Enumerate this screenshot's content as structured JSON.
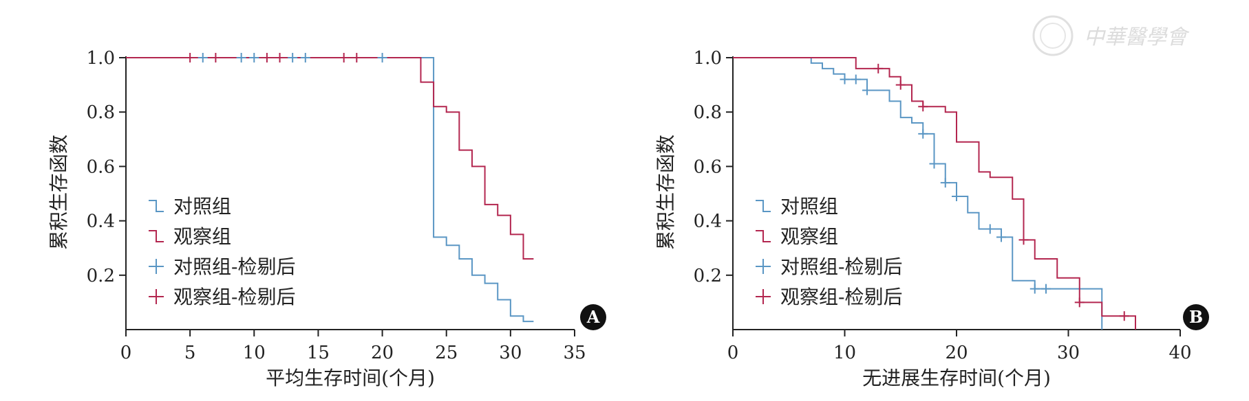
{
  "colors": {
    "control": "#5a96c4",
    "observe": "#b3264f",
    "axis": "#222222"
  },
  "watermark": {
    "text": "中華醫學會"
  },
  "legend_labels": [
    "对照组",
    "观察组",
    "对照组-检剔后",
    "观察组-检剔后"
  ],
  "chart_data": [
    {
      "panel": "A",
      "type": "line",
      "step": true,
      "xlabel": "平均生存时间(个月)",
      "ylabel": "累积生存函数",
      "xlim": [
        0,
        35
      ],
      "ylim": [
        0,
        1.0
      ],
      "xticks": [
        "0",
        "5",
        "10",
        "15",
        "20",
        "25",
        "30",
        "35"
      ],
      "yticks": [
        "0.2",
        "0.4",
        "0.6",
        "0.8",
        "1.0"
      ],
      "grid": false,
      "legend_position": "lower-left",
      "series": [
        {
          "name": "对照组",
          "color_key": "control",
          "x": [
            0,
            24,
            24,
            25,
            26,
            27,
            28,
            29,
            30,
            31,
            31.8
          ],
          "y": [
            1.0,
            1.0,
            0.34,
            0.31,
            0.26,
            0.2,
            0.17,
            0.11,
            0.05,
            0.03,
            0.03
          ]
        },
        {
          "name": "观察组",
          "color_key": "observe",
          "x": [
            0,
            23,
            24,
            25,
            26,
            27,
            28,
            29,
            30,
            31,
            31.8
          ],
          "y": [
            1.0,
            0.91,
            0.82,
            0.8,
            0.66,
            0.6,
            0.46,
            0.42,
            0.35,
            0.26,
            0.26
          ]
        },
        {
          "name": "对照组-检剔后",
          "color_key": "control",
          "marker": "+",
          "x": [
            6,
            9,
            10,
            13,
            14,
            20
          ],
          "y": [
            1.0,
            1.0,
            1.0,
            1.0,
            1.0,
            1.0
          ]
        },
        {
          "name": "观察组-检剔后",
          "color_key": "observe",
          "marker": "+",
          "x": [
            5,
            7,
            11,
            12,
            17,
            18
          ],
          "y": [
            1.0,
            1.0,
            1.0,
            1.0,
            1.0,
            1.0
          ]
        }
      ]
    },
    {
      "panel": "B",
      "type": "line",
      "step": true,
      "xlabel": "无进展生存时间(个月)",
      "ylabel": "累积生存函数",
      "xlim": [
        0,
        40
      ],
      "ylim": [
        0,
        1.0
      ],
      "xticks": [
        "0",
        "10",
        "20",
        "30",
        "40"
      ],
      "yticks": [
        "0.2",
        "0.4",
        "0.6",
        "0.8",
        "1.0"
      ],
      "grid": false,
      "legend_position": "lower-left",
      "series": [
        {
          "name": "对照组",
          "color_key": "control",
          "x": [
            0,
            7,
            8,
            9,
            10,
            12,
            14,
            15,
            16,
            17,
            18,
            19,
            20,
            21,
            22,
            24,
            25,
            27,
            33,
            33
          ],
          "y": [
            1.0,
            0.98,
            0.96,
            0.94,
            0.92,
            0.88,
            0.84,
            0.78,
            0.76,
            0.72,
            0.61,
            0.54,
            0.49,
            0.43,
            0.37,
            0.34,
            0.18,
            0.15,
            0.15,
            0.0
          ]
        },
        {
          "name": "观察组",
          "color_key": "observe",
          "x": [
            0,
            11,
            14,
            15,
            16,
            17,
            19,
            20,
            22,
            23,
            25,
            26,
            27,
            29,
            31,
            33,
            36,
            36
          ],
          "y": [
            1.0,
            0.96,
            0.93,
            0.9,
            0.84,
            0.82,
            0.8,
            0.69,
            0.58,
            0.56,
            0.48,
            0.33,
            0.26,
            0.19,
            0.1,
            0.05,
            0.05,
            0.0
          ]
        },
        {
          "name": "对照组-检剔后",
          "color_key": "control",
          "marker": "+",
          "x": [
            10,
            11,
            12,
            17,
            18,
            19,
            20,
            23,
            24,
            27,
            28
          ],
          "y": [
            0.92,
            0.92,
            0.88,
            0.72,
            0.61,
            0.54,
            0.49,
            0.37,
            0.34,
            0.15,
            0.15
          ]
        },
        {
          "name": "观察组-检剔后",
          "color_key": "observe",
          "marker": "+",
          "x": [
            13,
            15,
            17,
            26,
            31,
            35
          ],
          "y": [
            0.96,
            0.9,
            0.82,
            0.33,
            0.1,
            0.05
          ]
        }
      ]
    }
  ]
}
